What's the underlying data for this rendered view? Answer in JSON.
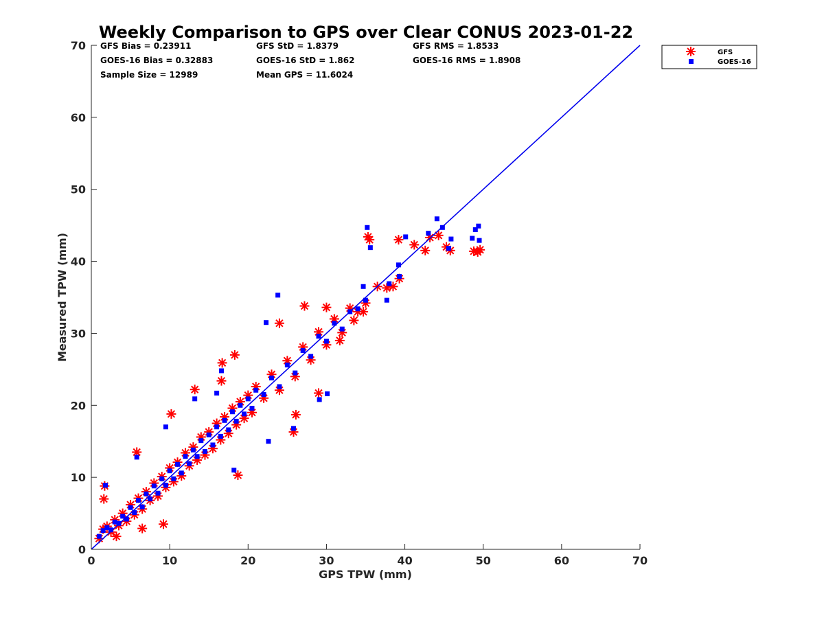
{
  "chart_data": {
    "type": "scatter",
    "title": "Weekly Comparison to GPS over Clear CONUS 2023-01-22",
    "xlabel": "GPS TPW (mm)",
    "ylabel": "Measured TPW (mm)",
    "xlim": [
      0,
      70
    ],
    "ylim": [
      0,
      70
    ],
    "xticks": [
      "0",
      "10",
      "20",
      "30",
      "40",
      "50",
      "60",
      "70"
    ],
    "yticks": [
      "0",
      "10",
      "20",
      "30",
      "40",
      "50",
      "60",
      "70"
    ],
    "grid": false,
    "legend_position": "top-right outside",
    "stats": [
      [
        "GFS Bias = 0.23911",
        "GFS StD = 1.8379",
        "GFS RMS = 1.8533"
      ],
      [
        "GOES-16 Bias = 0.32883",
        "GOES-16 StD = 1.862",
        "GOES-16 RMS = 1.8908"
      ],
      [
        "Sample Size = 12989",
        "Mean GPS = 11.6024",
        ""
      ]
    ],
    "reference_line": {
      "x": [
        0,
        70
      ],
      "y": [
        0,
        70
      ],
      "color": "#0000ee"
    },
    "series": [
      {
        "name": "GFS",
        "marker": "asterisk",
        "color": "#ff0000",
        "points": [
          [
            1,
            1.5
          ],
          [
            1.5,
            2.8
          ],
          [
            2,
            3.2
          ],
          [
            2.5,
            2.4
          ],
          [
            3,
            4.1
          ],
          [
            3.5,
            3.3
          ],
          [
            4,
            5.0
          ],
          [
            4.5,
            3.9
          ],
          [
            5,
            6.2
          ],
          [
            5.5,
            4.8
          ],
          [
            6,
            7.1
          ],
          [
            6.5,
            5.6
          ],
          [
            7,
            8.0
          ],
          [
            7.5,
            6.8
          ],
          [
            8,
            9.2
          ],
          [
            8.5,
            7.4
          ],
          [
            9,
            10.1
          ],
          [
            9.5,
            8.6
          ],
          [
            10,
            11.3
          ],
          [
            10.5,
            9.4
          ],
          [
            11,
            12.1
          ],
          [
            11.5,
            10.2
          ],
          [
            12,
            13.4
          ],
          [
            12.5,
            11.6
          ],
          [
            13,
            14.2
          ],
          [
            13.5,
            12.4
          ],
          [
            14,
            15.6
          ],
          [
            14.5,
            13.1
          ],
          [
            15,
            16.3
          ],
          [
            15.5,
            14.0
          ],
          [
            16,
            17.5
          ],
          [
            16.5,
            15.2
          ],
          [
            17,
            18.4
          ],
          [
            17.5,
            16.1
          ],
          [
            18,
            19.6
          ],
          [
            18.5,
            17.3
          ],
          [
            19,
            20.5
          ],
          [
            19.5,
            18.2
          ],
          [
            20,
            21.4
          ],
          [
            20.5,
            19.0
          ],
          [
            21,
            22.6
          ],
          [
            22,
            21.0
          ],
          [
            23,
            24.3
          ],
          [
            24,
            22.1
          ],
          [
            25,
            26.2
          ],
          [
            26,
            24.0
          ],
          [
            27,
            28.1
          ],
          [
            28,
            26.3
          ],
          [
            29,
            30.2
          ],
          [
            30,
            28.4
          ],
          [
            31,
            32.0
          ],
          [
            32,
            30.1
          ],
          [
            33,
            33.5
          ],
          [
            34,
            33.0
          ],
          [
            35,
            34.2
          ],
          [
            1.6,
            7.0
          ],
          [
            1.7,
            8.8
          ],
          [
            5.8,
            13.5
          ],
          [
            6.5,
            2.9
          ],
          [
            10.2,
            18.8
          ],
          [
            13.2,
            22.2
          ],
          [
            16.7,
            25.9
          ],
          [
            18.3,
            27.0
          ],
          [
            16.6,
            23.4
          ],
          [
            18.7,
            10.3
          ],
          [
            25.8,
            16.3
          ],
          [
            26.1,
            18.7
          ],
          [
            29.0,
            21.7
          ],
          [
            24.0,
            31.4
          ],
          [
            27.2,
            33.8
          ],
          [
            30.0,
            33.6
          ],
          [
            31.7,
            29.0
          ],
          [
            33.5,
            31.8
          ],
          [
            34.7,
            33.0
          ],
          [
            35.3,
            43.4
          ],
          [
            35.5,
            43.0
          ],
          [
            36.5,
            36.5
          ],
          [
            37.7,
            36.3
          ],
          [
            39.2,
            43.0
          ],
          [
            39.3,
            37.6
          ],
          [
            41.2,
            42.3
          ],
          [
            42.6,
            41.5
          ],
          [
            43.2,
            43.3
          ],
          [
            44.3,
            43.6
          ],
          [
            45.3,
            42.0
          ],
          [
            45.8,
            41.5
          ],
          [
            48.8,
            41.4
          ],
          [
            49.3,
            41.3
          ],
          [
            49.6,
            41.6
          ],
          [
            38.5,
            36.5
          ],
          [
            9.2,
            3.5
          ],
          [
            3.2,
            1.8
          ]
        ]
      },
      {
        "name": "GOES-16",
        "marker": "square",
        "color": "#0000ff",
        "points": [
          [
            1,
            1.8
          ],
          [
            1.5,
            2.6
          ],
          [
            2,
            3.0
          ],
          [
            2.5,
            2.7
          ],
          [
            3,
            3.8
          ],
          [
            3.5,
            3.6
          ],
          [
            4,
            4.6
          ],
          [
            4.5,
            4.2
          ],
          [
            5,
            5.8
          ],
          [
            5.5,
            5.1
          ],
          [
            6,
            6.8
          ],
          [
            6.5,
            5.9
          ],
          [
            7,
            7.7
          ],
          [
            7.5,
            7.0
          ],
          [
            8,
            8.8
          ],
          [
            8.5,
            7.8
          ],
          [
            9,
            9.8
          ],
          [
            9.5,
            8.9
          ],
          [
            10,
            10.9
          ],
          [
            10.5,
            9.8
          ],
          [
            11,
            11.8
          ],
          [
            11.5,
            10.6
          ],
          [
            12,
            12.9
          ],
          [
            12.5,
            11.9
          ],
          [
            13,
            13.8
          ],
          [
            13.5,
            12.9
          ],
          [
            14,
            15.1
          ],
          [
            14.5,
            13.6
          ],
          [
            15,
            15.9
          ],
          [
            15.5,
            14.5
          ],
          [
            16,
            17.0
          ],
          [
            16.5,
            15.7
          ],
          [
            17,
            17.9
          ],
          [
            17.5,
            16.6
          ],
          [
            18,
            19.1
          ],
          [
            18.5,
            17.8
          ],
          [
            19,
            20.0
          ],
          [
            19.5,
            18.8
          ],
          [
            20,
            20.9
          ],
          [
            20.5,
            19.6
          ],
          [
            21,
            22.1
          ],
          [
            22,
            21.5
          ],
          [
            23,
            23.8
          ],
          [
            24,
            22.6
          ],
          [
            25,
            25.6
          ],
          [
            26,
            24.5
          ],
          [
            27,
            27.6
          ],
          [
            28,
            26.8
          ],
          [
            29,
            29.6
          ],
          [
            30,
            28.9
          ],
          [
            31,
            31.4
          ],
          [
            32,
            30.6
          ],
          [
            33,
            33.0
          ],
          [
            34,
            33.4
          ],
          [
            35,
            34.6
          ],
          [
            1.8,
            8.9
          ],
          [
            5.8,
            12.8
          ],
          [
            9.5,
            17.0
          ],
          [
            13.2,
            20.9
          ],
          [
            16.0,
            21.7
          ],
          [
            16.6,
            24.8
          ],
          [
            18.2,
            11.0
          ],
          [
            22.3,
            31.5
          ],
          [
            23.8,
            35.3
          ],
          [
            22.6,
            15.0
          ],
          [
            25.8,
            16.8
          ],
          [
            29.1,
            20.8
          ],
          [
            30.1,
            21.6
          ],
          [
            34.7,
            36.5
          ],
          [
            35.2,
            44.7
          ],
          [
            35.6,
            41.9
          ],
          [
            37.7,
            34.6
          ],
          [
            38.0,
            36.9
          ],
          [
            39.2,
            39.5
          ],
          [
            40.1,
            43.4
          ],
          [
            43.0,
            43.9
          ],
          [
            44.1,
            45.9
          ],
          [
            44.8,
            44.7
          ],
          [
            45.6,
            41.8
          ],
          [
            45.9,
            43.1
          ],
          [
            48.6,
            43.2
          ],
          [
            49.0,
            44.4
          ],
          [
            49.4,
            44.9
          ],
          [
            49.5,
            42.9
          ],
          [
            39.3,
            37.9
          ]
        ]
      }
    ]
  }
}
